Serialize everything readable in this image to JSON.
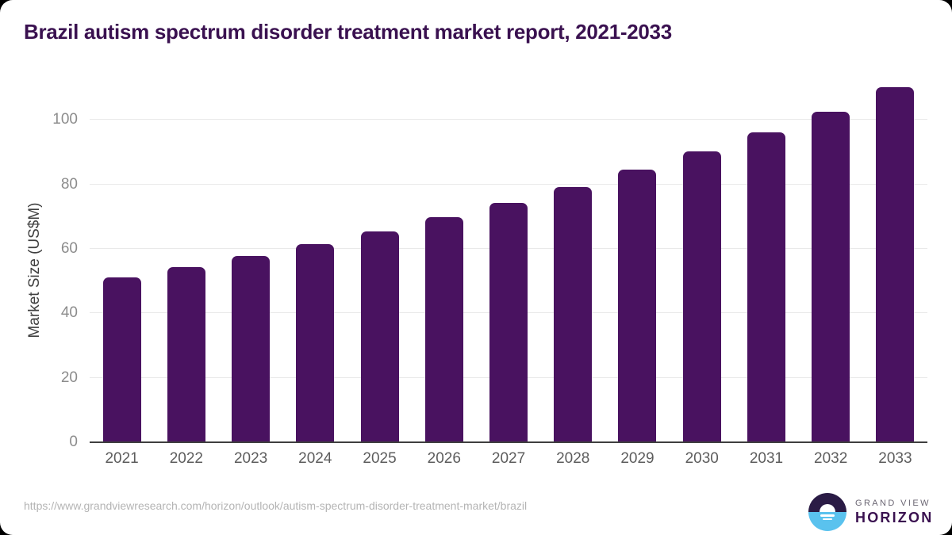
{
  "header": {
    "title": "Brazil autism spectrum disorder treatment market report, 2021-2033"
  },
  "chart_data": {
    "type": "bar",
    "title": "Brazil autism spectrum disorder treatment market report, 2021-2033",
    "categories": [
      "2021",
      "2022",
      "2023",
      "2024",
      "2025",
      "2026",
      "2027",
      "2028",
      "2029",
      "2030",
      "2031",
      "2032",
      "2033"
    ],
    "values": [
      51.1,
      54.3,
      57.8,
      61.5,
      65.4,
      69.9,
      74.3,
      79.1,
      84.5,
      90.1,
      96.1,
      102.6,
      110.1
    ],
    "xlabel": "",
    "ylabel": "Market Size (US$M)",
    "yticks": [
      0,
      20,
      40,
      60,
      80,
      100
    ],
    "ylim": [
      0,
      111.6
    ],
    "grid": true,
    "legend": false,
    "bar_color": "#491260"
  },
  "footer": {
    "source_url": "https://www.grandviewresearch.com/horizon/outlook/autism-spectrum-disorder-treatment-market/brazil",
    "logo": {
      "line1": "GRAND VIEW",
      "line2": "HORIZON"
    }
  },
  "colors": {
    "brand_purple": "#3a1150",
    "bar_purple": "#491260",
    "logo_blue": "#5ac2ee",
    "logo_dark": "#2a1b45",
    "gridline": "#e9e9e9",
    "axis_line": "#3f3f3f"
  }
}
